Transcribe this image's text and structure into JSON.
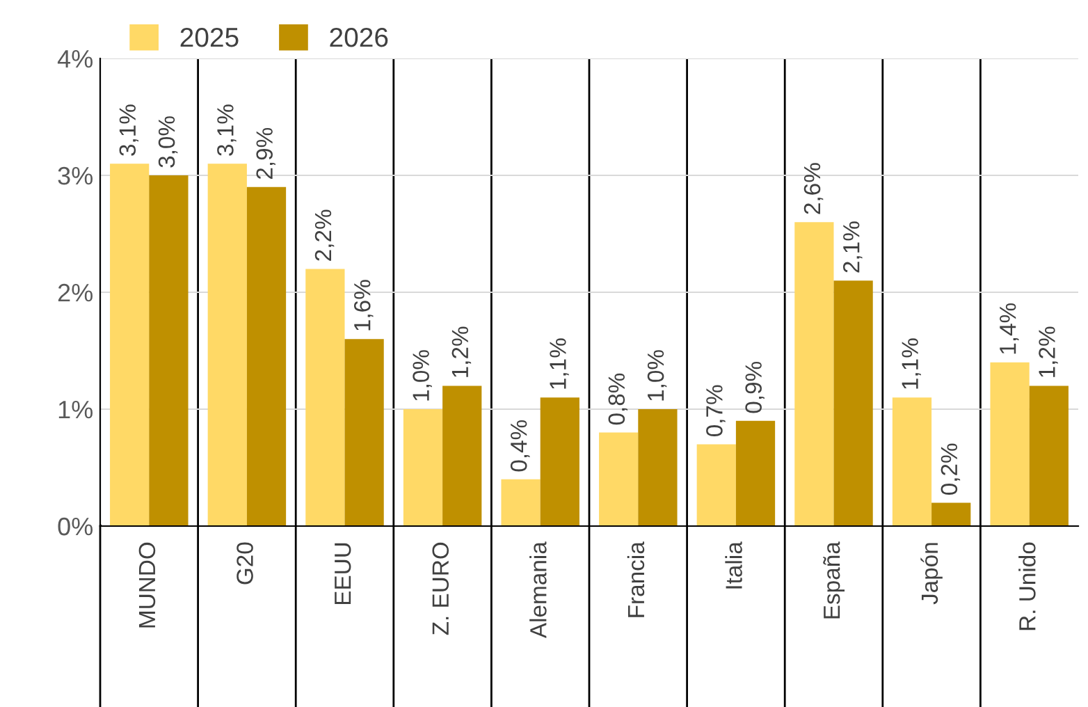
{
  "chart_data": {
    "type": "bar",
    "categories": [
      "MUNDO",
      "G20",
      "EEUU",
      "Z. EURO",
      "Alemania",
      "Francia",
      "Italia",
      "España",
      "Japón",
      "R. Unido"
    ],
    "series": [
      {
        "name": "2025",
        "color": "#ffd966",
        "values": [
          3.1,
          3.1,
          2.2,
          1.0,
          0.4,
          0.8,
          0.7,
          2.6,
          1.1,
          1.4
        ],
        "value_labels": [
          "3,1%",
          "3,1%",
          "2,2%",
          "1,0%",
          "0,4%",
          "0,8%",
          "0,7%",
          "2,6%",
          "1,1%",
          "1,4%"
        ]
      },
      {
        "name": "2026",
        "color": "#bf9000",
        "values": [
          3.0,
          2.9,
          1.6,
          1.2,
          1.1,
          1.0,
          0.9,
          2.1,
          0.2,
          1.2
        ],
        "value_labels": [
          "3,0%",
          "2,9%",
          "1,6%",
          "1,2%",
          "1,1%",
          "1,0%",
          "0,9%",
          "2,1%",
          "0,2%",
          "1,2%"
        ]
      }
    ],
    "ylim": [
      0,
      4
    ],
    "yticks": [
      {
        "value": 0,
        "label": "0%"
      },
      {
        "value": 1,
        "label": "1%"
      },
      {
        "value": 2,
        "label": "2%"
      },
      {
        "value": 3,
        "label": "3%"
      },
      {
        "value": 4,
        "label": "4%"
      }
    ],
    "grid": true,
    "legend": "top left"
  }
}
